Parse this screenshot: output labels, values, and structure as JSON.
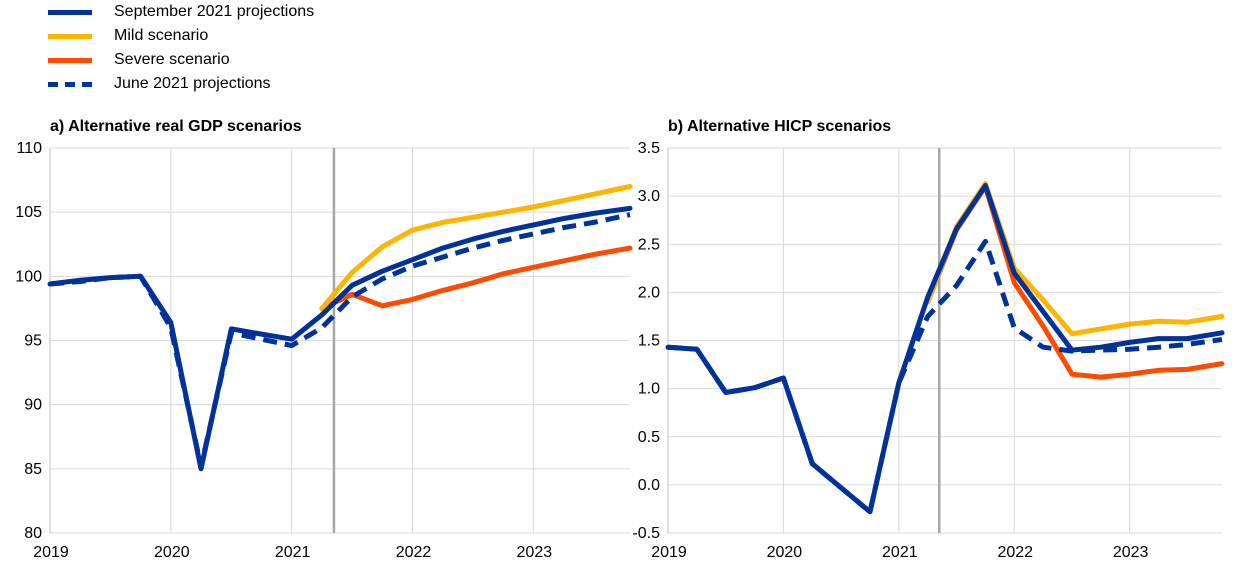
{
  "legend": [
    {
      "name": "September 2021 projections",
      "color": "#003299",
      "style": "solid"
    },
    {
      "name": "Mild scenario",
      "color": "#FFB400",
      "style": "solid"
    },
    {
      "name": "Severe scenario",
      "color": "#FF4B00",
      "style": "solid"
    },
    {
      "name": "June 2021 projections",
      "color": "#003299",
      "style": "dashed"
    }
  ],
  "chart_data": [
    {
      "type": "line",
      "title": "a) Alternative real GDP scenarios",
      "xlabel": "",
      "ylabel": "",
      "xlim": [
        2019,
        2023.8
      ],
      "ylim": [
        80,
        110
      ],
      "yticks": [
        80,
        85,
        90,
        95,
        100,
        105,
        110
      ],
      "xticks": [
        2019,
        2020,
        2021,
        2022,
        2023
      ],
      "xtick_labels": [
        "2019",
        "2020",
        "2021",
        "2022",
        "2023"
      ],
      "projection_start": 2021.35,
      "grid": true,
      "series": [
        {
          "name": "Severe scenario",
          "color": "#FF4B00",
          "dash": false,
          "x": [
            2021.25,
            2021.5,
            2021.75,
            2022.0,
            2022.25,
            2022.5,
            2022.75,
            2023.0,
            2023.25,
            2023.5,
            2023.8
          ],
          "y": [
            97.5,
            98.6,
            97.7,
            98.2,
            98.9,
            99.5,
            100.2,
            100.7,
            101.2,
            101.7,
            102.2
          ]
        },
        {
          "name": "Mild scenario",
          "color": "#FFB400",
          "dash": false,
          "x": [
            2021.25,
            2021.5,
            2021.75,
            2022.0,
            2022.25,
            2022.5,
            2022.75,
            2023.0,
            2023.25,
            2023.5,
            2023.8
          ],
          "y": [
            97.5,
            100.3,
            102.3,
            103.6,
            104.2,
            104.6,
            105.0,
            105.4,
            105.9,
            106.4,
            107.0
          ]
        },
        {
          "name": "June 2021 projections",
          "color": "#003299",
          "dash": true,
          "x": [
            2019.0,
            2019.25,
            2019.5,
            2019.75,
            2020.0,
            2020.25,
            2020.5,
            2020.75,
            2021.0,
            2021.25,
            2021.5,
            2021.75,
            2022.0,
            2022.25,
            2022.5,
            2022.75,
            2023.0,
            2023.25,
            2023.5,
            2023.8
          ],
          "y": [
            99.4,
            99.6,
            99.9,
            100.0,
            96.0,
            85.2,
            95.6,
            95.1,
            94.6,
            96.0,
            98.4,
            99.8,
            100.8,
            101.5,
            102.2,
            102.8,
            103.3,
            103.8,
            104.2,
            104.8
          ]
        },
        {
          "name": "September 2021 projections",
          "color": "#003299",
          "dash": false,
          "x": [
            2019.0,
            2019.25,
            2019.5,
            2019.75,
            2020.0,
            2020.25,
            2020.5,
            2020.75,
            2021.0,
            2021.25,
            2021.5,
            2021.75,
            2022.0,
            2022.25,
            2022.5,
            2022.75,
            2023.0,
            2023.25,
            2023.5,
            2023.8
          ],
          "y": [
            99.4,
            99.7,
            99.9,
            100.0,
            96.4,
            85.0,
            95.9,
            95.5,
            95.1,
            97.0,
            99.3,
            100.4,
            101.3,
            102.2,
            102.9,
            103.5,
            104.0,
            104.5,
            104.9,
            105.3
          ]
        }
      ]
    },
    {
      "type": "line",
      "title": "b) Alternative HICP scenarios",
      "xlabel": "",
      "ylabel": "",
      "xlim": [
        2019,
        2023.8
      ],
      "ylim": [
        -0.5,
        3.5
      ],
      "yticks": [
        -0.5,
        0.0,
        0.5,
        1.0,
        1.5,
        2.0,
        2.5,
        3.0,
        3.5
      ],
      "xticks": [
        2019,
        2020,
        2021,
        2022,
        2023
      ],
      "xtick_labels": [
        "2019",
        "2020",
        "2021",
        "2022",
        "2023"
      ],
      "projection_start": 2021.35,
      "grid": true,
      "series": [
        {
          "name": "Severe scenario",
          "color": "#FF4B00",
          "dash": false,
          "x": [
            2021.25,
            2021.5,
            2021.75,
            2022.0,
            2022.25,
            2022.5,
            2022.75,
            2023.0,
            2023.25,
            2023.5,
            2023.8
          ],
          "y": [
            1.9,
            2.65,
            3.1,
            2.1,
            1.65,
            1.15,
            1.12,
            1.15,
            1.19,
            1.2,
            1.26
          ]
        },
        {
          "name": "Mild scenario",
          "color": "#FFB400",
          "dash": false,
          "x": [
            2021.25,
            2021.5,
            2021.75,
            2022.0,
            2022.25,
            2022.5,
            2022.75,
            2023.0,
            2023.25,
            2023.5,
            2023.8
          ],
          "y": [
            1.9,
            2.68,
            3.13,
            2.25,
            1.92,
            1.57,
            1.62,
            1.67,
            1.7,
            1.69,
            1.75
          ]
        },
        {
          "name": "June 2021 projections",
          "color": "#003299",
          "dash": true,
          "x": [
            2019.0,
            2019.25,
            2019.5,
            2019.75,
            2020.0,
            2020.25,
            2020.5,
            2020.75,
            2021.0,
            2021.25,
            2021.5,
            2021.75,
            2022.0,
            2022.25,
            2022.5,
            2022.75,
            2023.0,
            2023.25,
            2023.5,
            2023.8
          ],
          "y": [
            1.43,
            1.41,
            0.96,
            1.01,
            1.11,
            0.22,
            -0.03,
            -0.28,
            1.06,
            1.75,
            2.07,
            2.53,
            1.63,
            1.43,
            1.39,
            1.4,
            1.41,
            1.43,
            1.46,
            1.51
          ]
        },
        {
          "name": "September 2021 projections",
          "color": "#003299",
          "dash": false,
          "x": [
            2019.0,
            2019.25,
            2019.5,
            2019.75,
            2020.0,
            2020.25,
            2020.5,
            2020.75,
            2021.0,
            2021.25,
            2021.5,
            2021.75,
            2022.0,
            2022.25,
            2022.5,
            2022.75,
            2023.0,
            2023.25,
            2023.5,
            2023.8
          ],
          "y": [
            1.43,
            1.41,
            0.96,
            1.01,
            1.11,
            0.22,
            -0.03,
            -0.28,
            1.06,
            1.95,
            2.66,
            3.11,
            2.2,
            1.8,
            1.4,
            1.43,
            1.48,
            1.52,
            1.52,
            1.58
          ]
        }
      ]
    }
  ]
}
